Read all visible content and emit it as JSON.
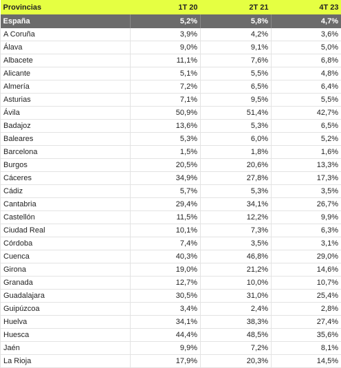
{
  "columns": [
    "Provincias",
    "1T 20",
    "2T 21",
    "4T 23"
  ],
  "total": {
    "name": "España",
    "v1": "5,2%",
    "v2": "5,8%",
    "v3": "4,7%"
  },
  "rows": [
    {
      "name": "A Coruña",
      "v1": "3,9%",
      "v2": "4,2%",
      "v3": "3,6%"
    },
    {
      "name": "Álava",
      "v1": "9,0%",
      "v2": "9,1%",
      "v3": "5,0%"
    },
    {
      "name": "Albacete",
      "v1": "11,1%",
      "v2": "7,6%",
      "v3": "6,8%"
    },
    {
      "name": "Alicante",
      "v1": "5,1%",
      "v2": "5,5%",
      "v3": "4,8%"
    },
    {
      "name": "Almería",
      "v1": "7,2%",
      "v2": "6,5%",
      "v3": "6,4%"
    },
    {
      "name": "Asturias",
      "v1": "7,1%",
      "v2": "9,5%",
      "v3": "5,5%"
    },
    {
      "name": "Ávila",
      "v1": "50,9%",
      "v2": "51,4%",
      "v3": "42,7%"
    },
    {
      "name": "Badajoz",
      "v1": "13,6%",
      "v2": "5,3%",
      "v3": "6,5%"
    },
    {
      "name": "Baleares",
      "v1": "5,3%",
      "v2": "6,0%",
      "v3": "5,2%"
    },
    {
      "name": "Barcelona",
      "v1": "1,5%",
      "v2": "1,8%",
      "v3": "1,6%"
    },
    {
      "name": "Burgos",
      "v1": "20,5%",
      "v2": "20,6%",
      "v3": "13,3%"
    },
    {
      "name": "Cáceres",
      "v1": "34,9%",
      "v2": "27,8%",
      "v3": "17,3%"
    },
    {
      "name": "Cádiz",
      "v1": "5,7%",
      "v2": "5,3%",
      "v3": "3,5%"
    },
    {
      "name": "Cantabria",
      "v1": "29,4%",
      "v2": "34,1%",
      "v3": "26,7%"
    },
    {
      "name": "Castellón",
      "v1": "11,5%",
      "v2": "12,2%",
      "v3": "9,9%"
    },
    {
      "name": "Ciudad Real",
      "v1": "10,1%",
      "v2": "7,3%",
      "v3": "6,3%"
    },
    {
      "name": "Córdoba",
      "v1": "7,4%",
      "v2": "3,5%",
      "v3": "3,1%"
    },
    {
      "name": "Cuenca",
      "v1": "40,3%",
      "v2": "46,8%",
      "v3": "29,0%"
    },
    {
      "name": "Girona",
      "v1": "19,0%",
      "v2": "21,2%",
      "v3": "14,6%"
    },
    {
      "name": "Granada",
      "v1": "12,7%",
      "v2": "10,0%",
      "v3": "10,7%"
    },
    {
      "name": "Guadalajara",
      "v1": "30,5%",
      "v2": "31,0%",
      "v3": "25,4%"
    },
    {
      "name": "Guipúzcoa",
      "v1": "3,4%",
      "v2": "2,4%",
      "v3": "2,8%"
    },
    {
      "name": "Huelva",
      "v1": "34,1%",
      "v2": "38,3%",
      "v3": "27,4%"
    },
    {
      "name": "Huesca",
      "v1": "44,4%",
      "v2": "48,5%",
      "v3": "35,6%"
    },
    {
      "name": "Jaén",
      "v1": "9,9%",
      "v2": "7,2%",
      "v3": "8,1%"
    },
    {
      "name": "La Rioja",
      "v1": "17,9%",
      "v2": "20,3%",
      "v3": "14,5%"
    }
  ]
}
